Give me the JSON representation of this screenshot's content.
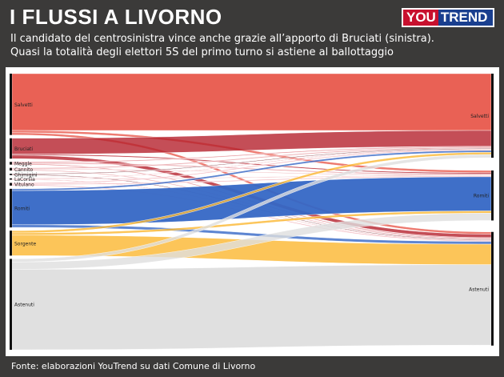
{
  "header": {
    "title": "I FLUSSI A LIVORNO",
    "subtitle_line1": "Il candidato del centrosinistra vince anche grazie all’apporto di Bruciati (sinistra).",
    "subtitle_line2": "Quasi la totalità degli elettori 5S del primo turno si astiene al ballottaggio",
    "logo_part1": "YOU",
    "logo_part2": "TREND"
  },
  "footer": {
    "source": "Fonte: elaborazioni YouTrend su dati Comune di Livorno"
  },
  "colors": {
    "Salvetti": "#e8594c",
    "Bruciati": "#b5222d",
    "Meggle": "#e07a82",
    "Cannito": "#e9a0a5",
    "Ghimigini": "#7a2a33",
    "LaCorsia": "#d94b57",
    "Vitulano": "#f0a7b0",
    "Romiti": "#3567c5",
    "Sorgente": "#fbb730",
    "Astenuti": "#dedede"
  },
  "chart_data": {
    "type": "sankey",
    "sources": [
      {
        "name": "Salvetti",
        "value": 27
      },
      {
        "name": "Bruciati",
        "value": 9
      },
      {
        "name": "Meggle",
        "value": 1.2
      },
      {
        "name": "Cannito",
        "value": 1.2
      },
      {
        "name": "Ghimigini",
        "value": 0.6
      },
      {
        "name": "LaCorsia",
        "value": 0.6
      },
      {
        "name": "Vitulano",
        "value": 1.2
      },
      {
        "name": "Romiti",
        "value": 17
      },
      {
        "name": "Sorgente",
        "value": 11
      },
      {
        "name": "Astenuti",
        "value": 40
      }
    ],
    "targets": [
      {
        "name": "Salvetti",
        "value": 37
      },
      {
        "name": "Romiti",
        "value": 22
      },
      {
        "name": "Astenuti",
        "value": 50
      }
    ],
    "flows": [
      {
        "from": "Salvetti",
        "to": "Salvetti",
        "value": 25
      },
      {
        "from": "Salvetti",
        "to": "Romiti",
        "value": 1
      },
      {
        "from": "Salvetti",
        "to": "Astenuti",
        "value": 1
      },
      {
        "from": "Bruciati",
        "to": "Salvetti",
        "value": 7
      },
      {
        "from": "Bruciati",
        "to": "Romiti",
        "value": 0.5
      },
      {
        "from": "Bruciati",
        "to": "Astenuti",
        "value": 1.5
      },
      {
        "from": "Meggle",
        "to": "Salvetti",
        "value": 0.4
      },
      {
        "from": "Meggle",
        "to": "Romiti",
        "value": 0.4
      },
      {
        "from": "Meggle",
        "to": "Astenuti",
        "value": 0.4
      },
      {
        "from": "Cannito",
        "to": "Salvetti",
        "value": 0.5
      },
      {
        "from": "Cannito",
        "to": "Romiti",
        "value": 0.3
      },
      {
        "from": "Cannito",
        "to": "Astenuti",
        "value": 0.4
      },
      {
        "from": "Ghimigini",
        "to": "Salvetti",
        "value": 0.3
      },
      {
        "from": "Ghimigini",
        "to": "Astenuti",
        "value": 0.3
      },
      {
        "from": "LaCorsia",
        "to": "Salvetti",
        "value": 0.2
      },
      {
        "from": "LaCorsia",
        "to": "Romiti",
        "value": 0.2
      },
      {
        "from": "LaCorsia",
        "to": "Astenuti",
        "value": 0.2
      },
      {
        "from": "Vitulano",
        "to": "Salvetti",
        "value": 0.4
      },
      {
        "from": "Vitulano",
        "to": "Romiti",
        "value": 0.4
      },
      {
        "from": "Vitulano",
        "to": "Astenuti",
        "value": 0.4
      },
      {
        "from": "Romiti",
        "to": "Salvetti",
        "value": 0.8
      },
      {
        "from": "Romiti",
        "to": "Romiti",
        "value": 15
      },
      {
        "from": "Romiti",
        "to": "Astenuti",
        "value": 1.2
      },
      {
        "from": "Sorgente",
        "to": "Salvetti",
        "value": 1
      },
      {
        "from": "Sorgente",
        "to": "Romiti",
        "value": 1
      },
      {
        "from": "Sorgente",
        "to": "Astenuti",
        "value": 9
      },
      {
        "from": "Astenuti",
        "to": "Salvetti",
        "value": 1.4
      },
      {
        "from": "Astenuti",
        "to": "Romiti",
        "value": 3.2
      },
      {
        "from": "Astenuti",
        "to": "Astenuti",
        "value": 35.4
      }
    ]
  }
}
